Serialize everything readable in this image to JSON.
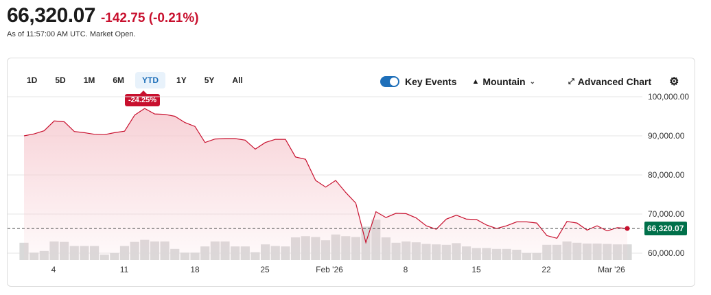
{
  "header": {
    "price": "66,320.07",
    "change": "-142.75",
    "change_pct": "(-0.21%)",
    "as_of": "As of 11:57:00 AM UTC. Market Open."
  },
  "ranges": [
    "1D",
    "5D",
    "1M",
    "6M",
    "YTD",
    "1Y",
    "5Y",
    "All"
  ],
  "active_range": "YTD",
  "period_change_badge": "-24.25%",
  "controls": {
    "key_events_label": "Key Events",
    "key_events_on": true,
    "chart_type_label": "Mountain",
    "advanced_chart_label": "Advanced Chart"
  },
  "icons": [
    "toggle-switch",
    "mountain-icon",
    "chevron-down-icon",
    "expand-arrows-icon",
    "gear-icon"
  ],
  "colors": {
    "line": "#c8102e",
    "area": "#f6c9cf",
    "badge": "#c8102e",
    "last_price": "#00704a",
    "active_tab": "#1e6fb9",
    "volume": "#d9d9d9"
  },
  "chart_data": {
    "type": "area",
    "y_ticks": [
      "100,000.00",
      "90,000.00",
      "80,000.00",
      "70,000.00",
      "60,000.00"
    ],
    "ylim": [
      60000,
      100000
    ],
    "x_ticks": [
      "4",
      "11",
      "18",
      "25",
      "Feb '26",
      "8",
      "15",
      "22",
      "Mar '26"
    ],
    "last_price_label": "66,320.07",
    "last_value": 66320.07,
    "values": [
      90000,
      90500,
      91300,
      93800,
      93600,
      91100,
      90800,
      90400,
      90300,
      90800,
      91200,
      95300,
      97000,
      95600,
      95500,
      95000,
      93400,
      92400,
      88300,
      89200,
      89300,
      89300,
      88900,
      86600,
      88300,
      89100,
      89100,
      84600,
      84000,
      78600,
      76900,
      78600,
      75500,
      72800,
      62700,
      70600,
      69100,
      70200,
      70100,
      69000,
      67000,
      66100,
      68700,
      69700,
      68700,
      68600,
      67200,
      66300,
      67000,
      68000,
      68000,
      67700,
      64500,
      63800,
      68100,
      67700,
      65900,
      67000,
      65700,
      66500,
      66320
    ],
    "volume": [
      0.42,
      0.18,
      0.22,
      0.45,
      0.44,
      0.34,
      0.34,
      0.34,
      0.13,
      0.17,
      0.34,
      0.44,
      0.49,
      0.45,
      0.45,
      0.27,
      0.18,
      0.18,
      0.33,
      0.45,
      0.45,
      0.33,
      0.33,
      0.19,
      0.38,
      0.34,
      0.33,
      0.55,
      0.58,
      0.56,
      0.48,
      0.62,
      0.58,
      0.56,
      0.81,
      0.98,
      0.55,
      0.42,
      0.45,
      0.43,
      0.39,
      0.38,
      0.37,
      0.41,
      0.33,
      0.29,
      0.29,
      0.27,
      0.27,
      0.25,
      0.17,
      0.17,
      0.37,
      0.37,
      0.45,
      0.42,
      0.4,
      0.4,
      0.39,
      0.38,
      0.38
    ]
  }
}
